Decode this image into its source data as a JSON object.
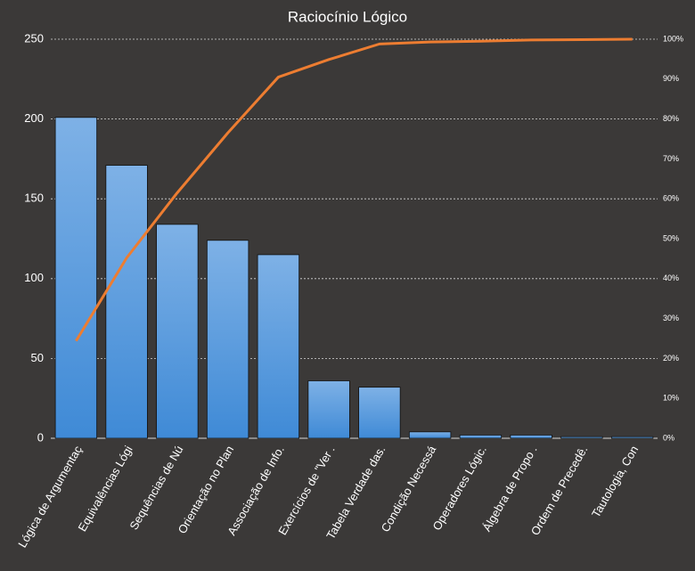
{
  "chart_data": {
    "type": "pareto",
    "title": "Raciocínio Lógico",
    "categories": [
      "Lógica de Argumentaç",
      "Equivalências Lógi",
      "Sequências de Nú",
      "Orientação no Plan",
      "Associação de Info.",
      "Exercícios de \"Ver .",
      "Tabela Verdade das.",
      "Condição Necessá",
      "Operadores Lógic.",
      "Álgebra de Propo .",
      "Ordem de Precedê.",
      "Tautologia, Con"
    ],
    "series": [
      {
        "type": "bar",
        "color": "#5b9bd5",
        "values": [
          201,
          171,
          134,
          124,
          115,
          36,
          32,
          4,
          2,
          2,
          1,
          1
        ]
      },
      {
        "type": "line",
        "color": "#ed7d31",
        "axis": "y2",
        "values": [
          24.4,
          45.2,
          61.5,
          76.5,
          90.5,
          94.9,
          98.8,
          99.3,
          99.5,
          99.8,
          99.9,
          100
        ]
      }
    ],
    "ylim": [
      0,
      250
    ],
    "yticks": [
      0,
      50,
      100,
      150,
      200,
      250
    ],
    "y2lim": [
      0,
      100
    ],
    "y2ticks": [
      {
        "value": 0,
        "label": "0%"
      },
      {
        "value": 10,
        "label": "10%"
      },
      {
        "value": 20,
        "label": "20%"
      },
      {
        "value": 30,
        "label": "30%"
      },
      {
        "value": 40,
        "label": "40%"
      },
      {
        "value": 50,
        "label": "50%"
      },
      {
        "value": 60,
        "label": "60%"
      },
      {
        "value": 70,
        "label": "70%"
      },
      {
        "value": 80,
        "label": "80%"
      },
      {
        "value": 90,
        "label": "90%"
      },
      {
        "value": 100,
        "label": "100%"
      }
    ],
    "grid": true
  }
}
